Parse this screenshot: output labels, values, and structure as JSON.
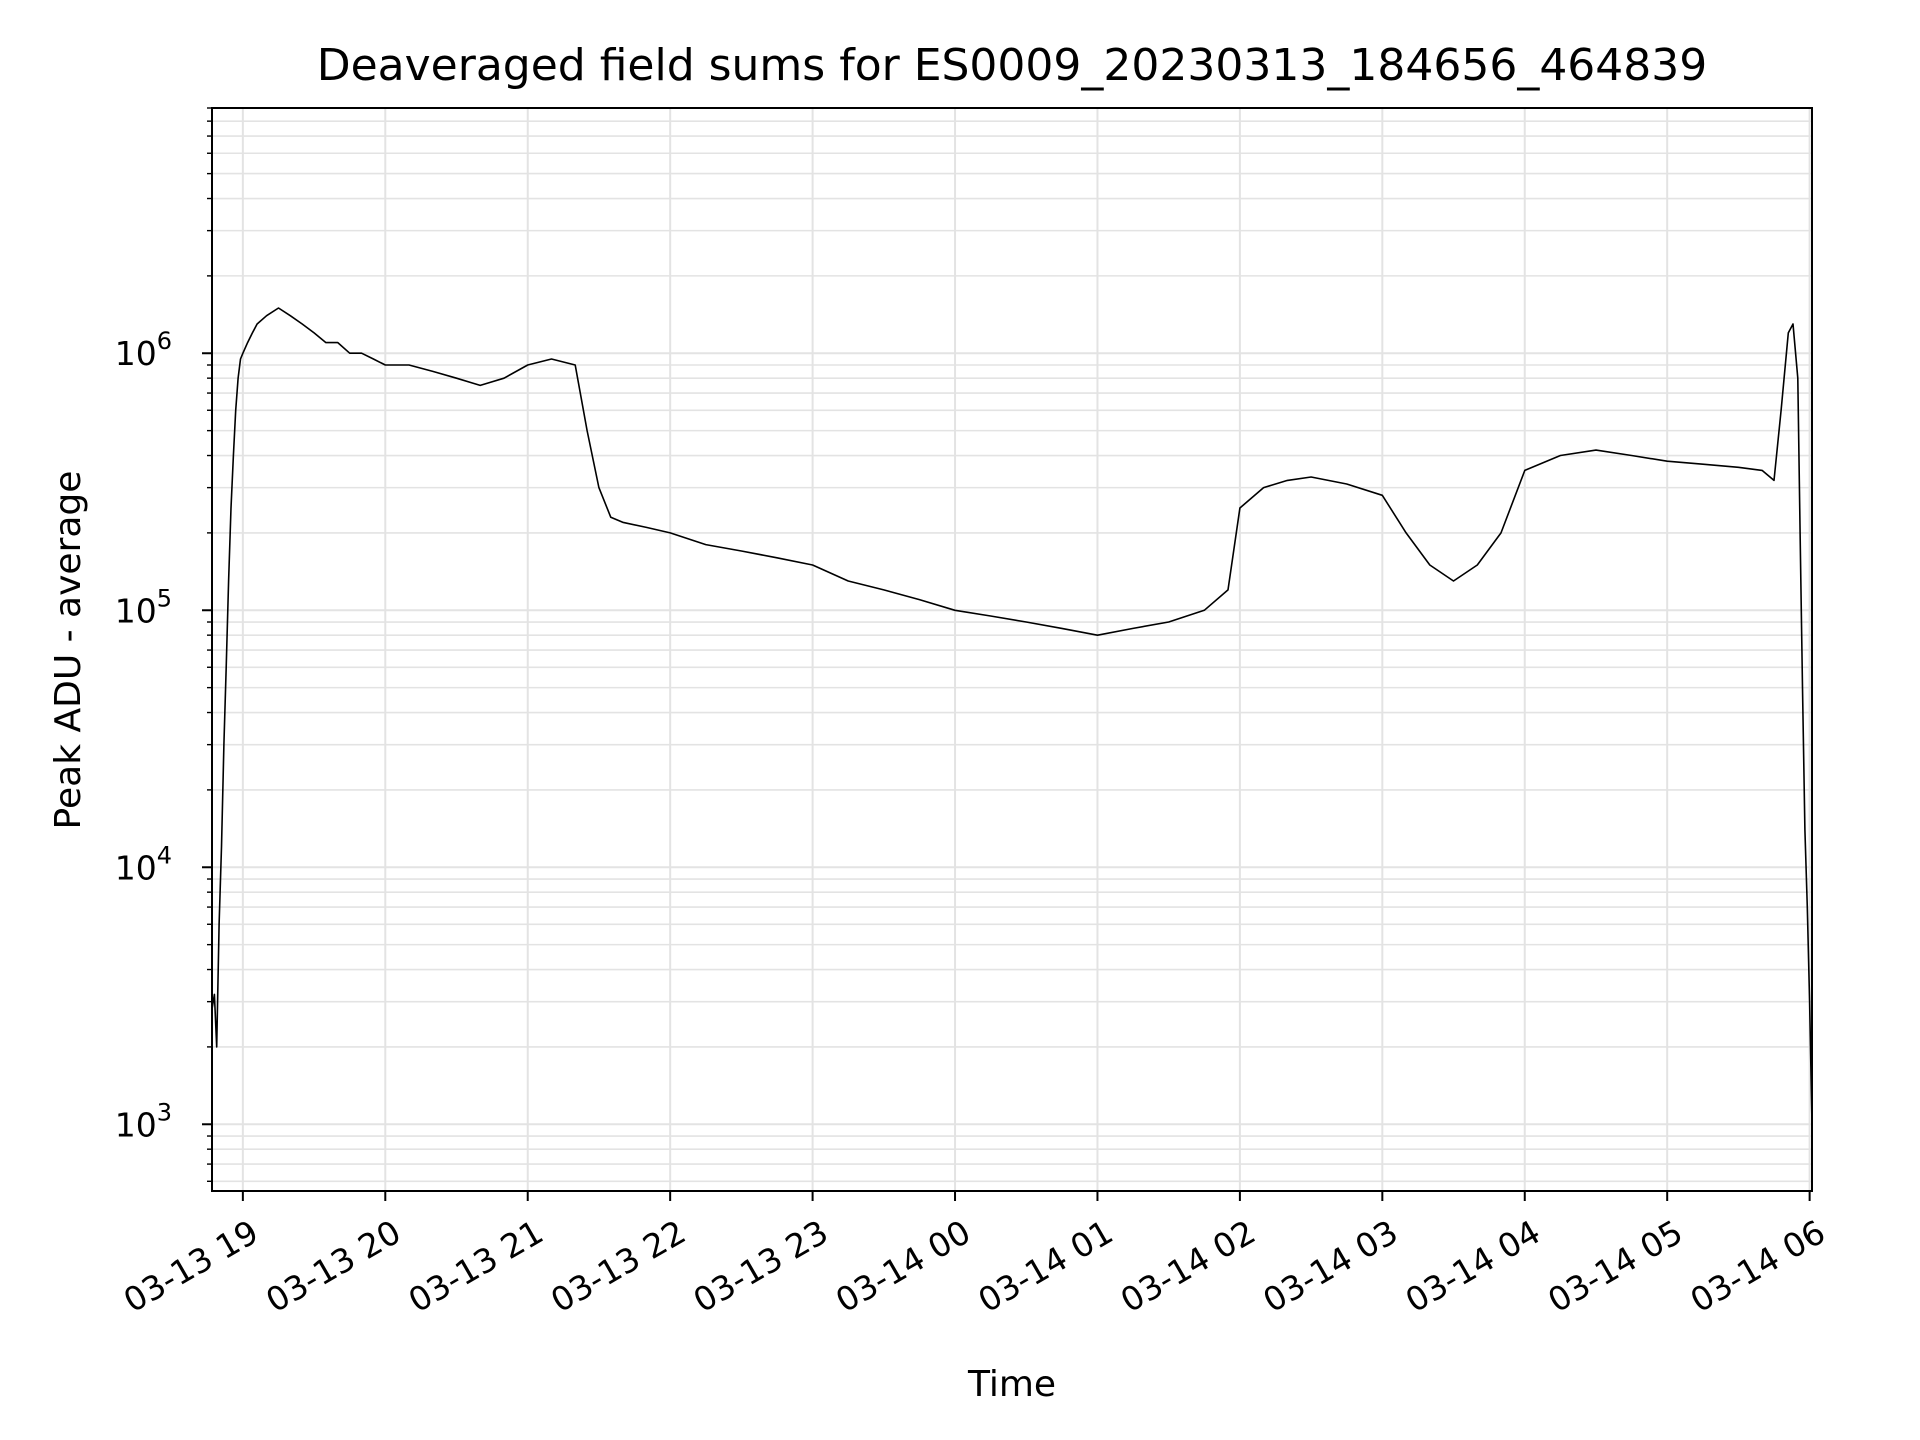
{
  "chart_data": {
    "type": "line",
    "title": "Deaveraged field sums for ES0009_20230313_184656_464839",
    "xlabel": "Time",
    "ylabel": "Peak ADU - average",
    "y_scale": "log",
    "ylim": [
      550,
      9000000
    ],
    "xlim": [
      "2023-03-13 18:47",
      "2023-03-14 06:01"
    ],
    "grid": true,
    "minor_grid": true,
    "legend": "none",
    "line_color": "#000000",
    "x_ticks": [
      {
        "value": "2023-03-13 19:00",
        "label": "03-13 19"
      },
      {
        "value": "2023-03-13 20:00",
        "label": "03-13 20"
      },
      {
        "value": "2023-03-13 21:00",
        "label": "03-13 21"
      },
      {
        "value": "2023-03-13 22:00",
        "label": "03-13 22"
      },
      {
        "value": "2023-03-13 23:00",
        "label": "03-13 23"
      },
      {
        "value": "2023-03-14 00:00",
        "label": "03-14 00"
      },
      {
        "value": "2023-03-14 01:00",
        "label": "03-14 01"
      },
      {
        "value": "2023-03-14 02:00",
        "label": "03-14 02"
      },
      {
        "value": "2023-03-14 03:00",
        "label": "03-14 03"
      },
      {
        "value": "2023-03-14 04:00",
        "label": "03-14 04"
      },
      {
        "value": "2023-03-14 05:00",
        "label": "03-14 05"
      },
      {
        "value": "2023-03-14 06:00",
        "label": "03-14 06"
      }
    ],
    "y_ticks": [
      {
        "value": 1000,
        "base": "10",
        "exp": "3"
      },
      {
        "value": 10000,
        "base": "10",
        "exp": "4"
      },
      {
        "value": 100000,
        "base": "10",
        "exp": "5"
      },
      {
        "value": 1000000,
        "base": "10",
        "exp": "6"
      }
    ],
    "series": [
      {
        "x": [
          "2023-03-13 18:47",
          "2023-03-13 18:48",
          "2023-03-13 18:49",
          "2023-03-13 18:50",
          "2023-03-13 18:51",
          "2023-03-13 18:52",
          "2023-03-13 18:53",
          "2023-03-13 18:54",
          "2023-03-13 18:55",
          "2023-03-13 18:56",
          "2023-03-13 18:57",
          "2023-03-13 18:58",
          "2023-03-13 18:59",
          "2023-03-13 19:00",
          "2023-03-13 19:02",
          "2023-03-13 19:04",
          "2023-03-13 19:06",
          "2023-03-13 19:10",
          "2023-03-13 19:15",
          "2023-03-13 19:20",
          "2023-03-13 19:25",
          "2023-03-13 19:30",
          "2023-03-13 19:35",
          "2023-03-13 19:40",
          "2023-03-13 19:45",
          "2023-03-13 19:50",
          "2023-03-13 19:55",
          "2023-03-13 20:00",
          "2023-03-13 20:10",
          "2023-03-13 20:20",
          "2023-03-13 20:30",
          "2023-03-13 20:40",
          "2023-03-13 20:50",
          "2023-03-13 21:00",
          "2023-03-13 21:10",
          "2023-03-13 21:20",
          "2023-03-13 21:25",
          "2023-03-13 21:30",
          "2023-03-13 21:35",
          "2023-03-13 21:40",
          "2023-03-13 21:50",
          "2023-03-13 22:00",
          "2023-03-13 22:15",
          "2023-03-13 22:30",
          "2023-03-13 22:45",
          "2023-03-13 23:00",
          "2023-03-13 23:15",
          "2023-03-13 23:30",
          "2023-03-13 23:45",
          "2023-03-14 00:00",
          "2023-03-14 00:15",
          "2023-03-14 00:30",
          "2023-03-14 00:45",
          "2023-03-14 01:00",
          "2023-03-14 01:15",
          "2023-03-14 01:30",
          "2023-03-14 01:45",
          "2023-03-14 01:55",
          "2023-03-14 02:00",
          "2023-03-14 02:10",
          "2023-03-14 02:20",
          "2023-03-14 02:30",
          "2023-03-14 02:45",
          "2023-03-14 03:00",
          "2023-03-14 03:10",
          "2023-03-14 03:20",
          "2023-03-14 03:30",
          "2023-03-14 03:40",
          "2023-03-14 03:50",
          "2023-03-14 04:00",
          "2023-03-14 04:15",
          "2023-03-14 04:30",
          "2023-03-14 04:45",
          "2023-03-14 05:00",
          "2023-03-14 05:15",
          "2023-03-14 05:30",
          "2023-03-14 05:40",
          "2023-03-14 05:45",
          "2023-03-14 05:48",
          "2023-03-14 05:51",
          "2023-03-14 05:53",
          "2023-03-14 05:55",
          "2023-03-14 05:56",
          "2023-03-14 05:57",
          "2023-03-14 05:58",
          "2023-03-14 05:59",
          "2023-03-14 06:00",
          "2023-03-14 06:01"
        ],
        "y": [
          2800,
          3200,
          2000,
          6000,
          12000,
          30000,
          60000,
          130000,
          250000,
          400000,
          600000,
          800000,
          950000,
          1000000,
          1100000,
          1200000,
          1300000,
          1400000,
          1500000,
          1400000,
          1300000,
          1200000,
          1100000,
          1100000,
          1000000,
          1000000,
          950000,
          900000,
          900000,
          850000,
          800000,
          750000,
          800000,
          900000,
          950000,
          900000,
          500000,
          300000,
          230000,
          220000,
          210000,
          200000,
          180000,
          170000,
          160000,
          150000,
          130000,
          120000,
          110000,
          100000,
          95000,
          90000,
          85000,
          80000,
          85000,
          90000,
          100000,
          120000,
          250000,
          300000,
          320000,
          330000,
          310000,
          280000,
          200000,
          150000,
          130000,
          150000,
          200000,
          350000,
          400000,
          420000,
          400000,
          380000,
          370000,
          360000,
          350000,
          320000,
          600000,
          1200000,
          1300000,
          800000,
          200000,
          50000,
          14000,
          7000,
          3000,
          1000
        ]
      }
    ]
  }
}
